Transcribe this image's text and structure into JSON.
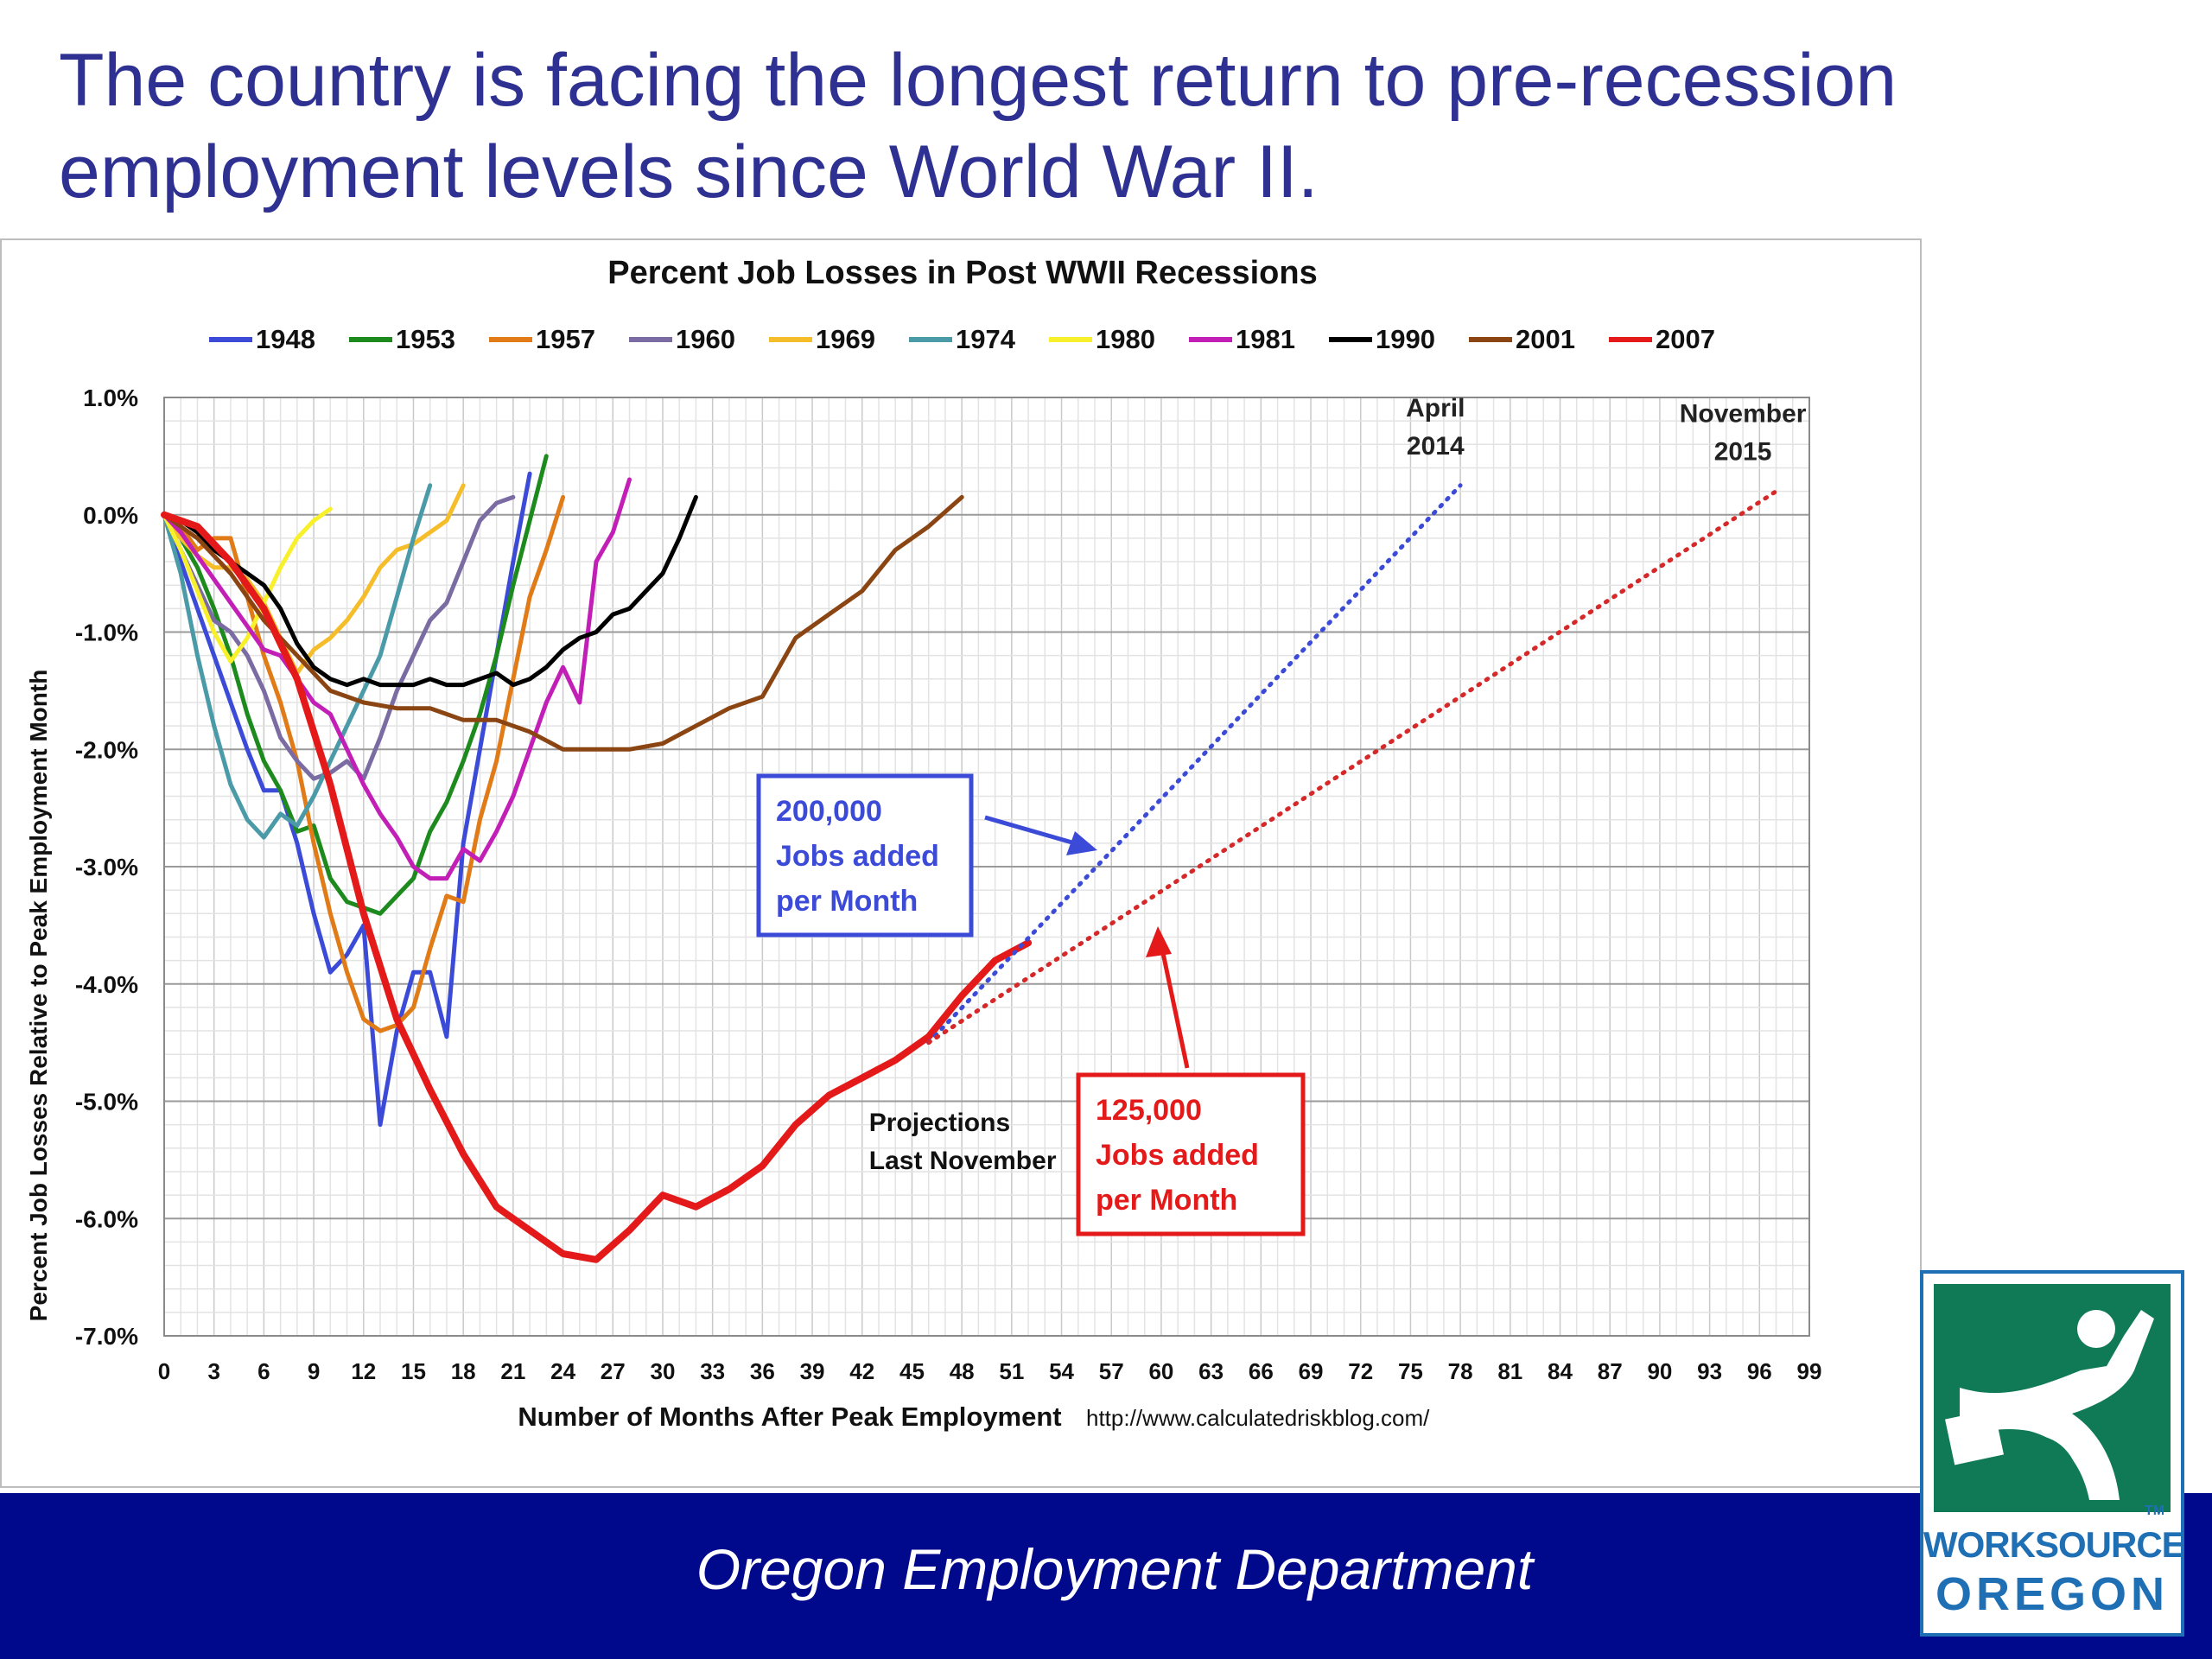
{
  "slide": {
    "title_line1": "The country is facing the longest return to pre-recession",
    "title_line2": "employment levels since World War II.",
    "footer": "Oregon Employment Department"
  },
  "logo": {
    "brand_line1": "WORKSOURCE",
    "brand_line2": "OREGON",
    "tm": "TM"
  },
  "chart_data": {
    "type": "line",
    "title": "Percent Job Losses in Post WWII Recessions",
    "xlabel": "Number of Months After Peak Employment",
    "ylabel": "Percent Job Losses Relative to Peak Employment Month",
    "source": "http://www.calculatedriskblog.com/",
    "xlim": [
      0,
      99
    ],
    "ylim": [
      -7,
      1
    ],
    "x_ticks": [
      0,
      3,
      6,
      9,
      12,
      15,
      18,
      21,
      24,
      27,
      30,
      33,
      36,
      39,
      42,
      45,
      48,
      51,
      54,
      57,
      60,
      63,
      66,
      69,
      72,
      75,
      78,
      81,
      84,
      87,
      90,
      93,
      96,
      99
    ],
    "y_ticks": [
      1,
      0,
      -1,
      -2,
      -3,
      -4,
      -5,
      -6,
      -7
    ],
    "y_tick_labels": [
      "1.0%",
      "0.0%",
      "-1.0%",
      "-2.0%",
      "-3.0%",
      "-4.0%",
      "-5.0%",
      "-6.0%",
      "-7.0%"
    ],
    "grid": true,
    "legend_position": "top",
    "series": [
      {
        "name": "1948",
        "color": "#3b4bd8",
        "x": [
          0,
          1,
          2,
          3,
          4,
          5,
          6,
          7,
          8,
          9,
          10,
          11,
          12,
          13,
          14,
          15,
          16,
          17,
          18,
          19,
          20,
          21,
          22
        ],
        "y": [
          0,
          -0.4,
          -0.8,
          -1.2,
          -1.6,
          -2.0,
          -2.35,
          -2.35,
          -2.8,
          -3.4,
          -3.9,
          -3.75,
          -3.5,
          -5.2,
          -4.4,
          -3.9,
          -3.9,
          -4.45,
          -2.8,
          -2.0,
          -1.2,
          -0.4,
          0.35
        ]
      },
      {
        "name": "1953",
        "color": "#1d8a1d",
        "x": [
          0,
          1,
          2,
          3,
          4,
          5,
          6,
          7,
          8,
          9,
          10,
          11,
          12,
          13,
          14,
          15,
          16,
          17,
          18,
          19,
          20,
          21,
          22,
          23
        ],
        "y": [
          0,
          -0.2,
          -0.45,
          -0.8,
          -1.2,
          -1.7,
          -2.1,
          -2.35,
          -2.7,
          -2.65,
          -3.1,
          -3.3,
          -3.35,
          -3.4,
          -3.25,
          -3.1,
          -2.7,
          -2.45,
          -2.1,
          -1.7,
          -1.2,
          -0.6,
          -0.05,
          0.5
        ]
      },
      {
        "name": "1957",
        "color": "#e07b18",
        "x": [
          0,
          1,
          2,
          3,
          4,
          5,
          6,
          7,
          8,
          9,
          10,
          11,
          12,
          13,
          14,
          15,
          16,
          17,
          18,
          19,
          20,
          21,
          22,
          23,
          24
        ],
        "y": [
          0,
          -0.1,
          -0.3,
          -0.2,
          -0.2,
          -0.7,
          -1.2,
          -1.6,
          -2.1,
          -2.8,
          -3.4,
          -3.9,
          -4.3,
          -4.4,
          -4.35,
          -4.2,
          -3.7,
          -3.25,
          -3.3,
          -2.6,
          -2.1,
          -1.4,
          -0.7,
          -0.3,
          0.15
        ]
      },
      {
        "name": "1960",
        "color": "#7b6ba3",
        "x": [
          0,
          1,
          2,
          3,
          4,
          5,
          6,
          7,
          8,
          9,
          10,
          11,
          12,
          13,
          14,
          15,
          16,
          17,
          18,
          19,
          20,
          21
        ],
        "y": [
          0,
          -0.3,
          -0.6,
          -0.9,
          -1.0,
          -1.2,
          -1.5,
          -1.9,
          -2.1,
          -2.25,
          -2.2,
          -2.1,
          -2.25,
          -1.9,
          -1.5,
          -1.2,
          -0.9,
          -0.75,
          -0.4,
          -0.05,
          0.1,
          0.15
        ]
      },
      {
        "name": "1969",
        "color": "#f5bd2a",
        "x": [
          0,
          1,
          2,
          3,
          4,
          5,
          6,
          7,
          8,
          9,
          10,
          11,
          12,
          13,
          14,
          15,
          16,
          17,
          18
        ],
        "y": [
          0,
          -0.2,
          -0.35,
          -0.45,
          -0.45,
          -0.55,
          -0.75,
          -1.05,
          -1.35,
          -1.15,
          -1.05,
          -0.9,
          -0.7,
          -0.45,
          -0.3,
          -0.25,
          -0.15,
          -0.05,
          0.25
        ]
      },
      {
        "name": "1974",
        "color": "#4a9aa8",
        "x": [
          0,
          1,
          2,
          3,
          4,
          5,
          6,
          7,
          8,
          9,
          10,
          11,
          12,
          13,
          14,
          15,
          16
        ],
        "y": [
          0,
          -0.5,
          -1.2,
          -1.8,
          -2.3,
          -2.6,
          -2.75,
          -2.55,
          -2.65,
          -2.4,
          -2.1,
          -1.8,
          -1.5,
          -1.2,
          -0.7,
          -0.2,
          0.25
        ]
      },
      {
        "name": "1980",
        "color": "#f7f02a",
        "x": [
          0,
          1,
          2,
          3,
          4,
          5,
          6,
          7,
          8,
          9,
          10
        ],
        "y": [
          0,
          -0.3,
          -0.65,
          -1.0,
          -1.25,
          -1.05,
          -0.75,
          -0.45,
          -0.2,
          -0.05,
          0.05
        ]
      },
      {
        "name": "1981",
        "color": "#c21fb7",
        "x": [
          0,
          1,
          2,
          3,
          4,
          5,
          6,
          7,
          8,
          9,
          10,
          11,
          12,
          13,
          14,
          15,
          16,
          17,
          18,
          19,
          20,
          21,
          22,
          23,
          24,
          25,
          26,
          27,
          28
        ],
        "y": [
          0,
          -0.15,
          -0.35,
          -0.55,
          -0.75,
          -0.95,
          -1.15,
          -1.2,
          -1.4,
          -1.6,
          -1.7,
          -2.0,
          -2.3,
          -2.55,
          -2.75,
          -3.0,
          -3.1,
          -3.1,
          -2.85,
          -2.95,
          -2.7,
          -2.4,
          -2.0,
          -1.6,
          -1.3,
          -1.6,
          -0.4,
          -0.15,
          0.3
        ]
      },
      {
        "name": "1990",
        "color": "#000000",
        "x": [
          0,
          1,
          2,
          3,
          4,
          5,
          6,
          7,
          8,
          9,
          10,
          11,
          12,
          13,
          14,
          15,
          16,
          17,
          18,
          19,
          20,
          21,
          22,
          23,
          24,
          25,
          26,
          27,
          28,
          29,
          30,
          31,
          32
        ],
        "y": [
          0,
          -0.05,
          -0.15,
          -0.3,
          -0.4,
          -0.5,
          -0.6,
          -0.8,
          -1.1,
          -1.3,
          -1.4,
          -1.45,
          -1.4,
          -1.45,
          -1.45,
          -1.45,
          -1.4,
          -1.45,
          -1.45,
          -1.4,
          -1.35,
          -1.45,
          -1.4,
          -1.3,
          -1.15,
          -1.05,
          -1.0,
          -0.85,
          -0.8,
          -0.65,
          -0.5,
          -0.2,
          0.15
        ]
      },
      {
        "name": "2001",
        "color": "#8b4513",
        "x": [
          0,
          2,
          4,
          6,
          8,
          10,
          12,
          14,
          16,
          18,
          20,
          22,
          24,
          26,
          28,
          30,
          32,
          34,
          36,
          38,
          40,
          42,
          44,
          46,
          48
        ],
        "y": [
          0,
          -0.2,
          -0.5,
          -0.9,
          -1.2,
          -1.5,
          -1.6,
          -1.65,
          -1.65,
          -1.75,
          -1.75,
          -1.85,
          -2.0,
          -2.0,
          -2.0,
          -1.95,
          -1.8,
          -1.65,
          -1.55,
          -1.05,
          -0.85,
          -0.65,
          -0.3,
          -0.1,
          0.15
        ]
      },
      {
        "name": "2007",
        "color": "#e41a1a",
        "x": [
          0,
          2,
          4,
          6,
          8,
          10,
          12,
          14,
          16,
          18,
          20,
          22,
          24,
          26,
          28,
          30,
          32,
          34,
          36,
          38,
          40,
          42,
          44,
          46,
          48,
          50,
          52
        ],
        "y": [
          0,
          -0.1,
          -0.4,
          -0.8,
          -1.4,
          -2.3,
          -3.4,
          -4.3,
          -4.9,
          -5.45,
          -5.9,
          -6.1,
          -6.3,
          -6.35,
          -6.1,
          -5.8,
          -5.9,
          -5.75,
          -5.55,
          -5.2,
          -4.95,
          -4.8,
          -4.65,
          -4.45,
          -4.1,
          -3.8,
          -3.65
        ]
      },
      {
        "name": "",
        "color": "#3b4bd8",
        "dashed": true,
        "x": [
          46,
          78
        ],
        "y": [
          -4.5,
          0.25
        ]
      },
      {
        "name": "",
        "color": "#d62828",
        "dashed": true,
        "x": [
          46,
          97
        ],
        "y": [
          -4.5,
          0.2
        ]
      }
    ],
    "annotations": [
      {
        "id": "april",
        "lines": [
          "April",
          "2014"
        ],
        "color": "#222222",
        "x": 76.5,
        "y": 0.5
      },
      {
        "id": "november",
        "lines": [
          "November",
          "2015"
        ],
        "color": "#222222",
        "x": 95,
        "y": 0.45
      },
      {
        "id": "projections",
        "lines": [
          "Projections",
          "Last November"
        ],
        "color": "#111111",
        "x": 42,
        "y": -5.4
      },
      {
        "id": "box200",
        "lines": [
          "200,000",
          "Jobs added",
          "per Month"
        ],
        "color": "#3b4bd8"
      },
      {
        "id": "box125",
        "lines": [
          "125,000",
          "Jobs added",
          "per Month"
        ],
        "color": "#e41a1a"
      }
    ]
  }
}
